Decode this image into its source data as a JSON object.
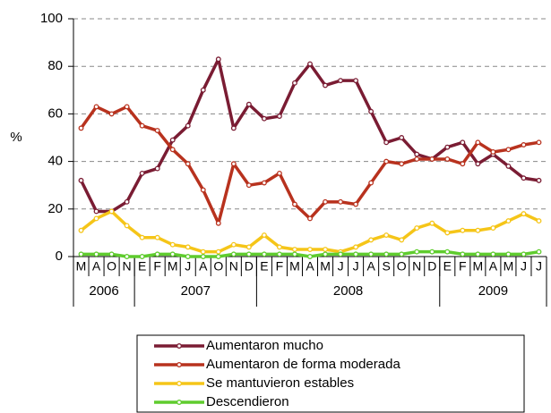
{
  "chart_data": {
    "type": "line",
    "y_label": "%",
    "categories": [
      "M",
      "A",
      "O",
      "N",
      "E",
      "F",
      "M",
      "J",
      "A",
      "O",
      "N",
      "D",
      "E",
      "F",
      "M",
      "A",
      "M",
      "J",
      "J",
      "A",
      "S",
      "O",
      "N",
      "D",
      "E",
      "F",
      "M",
      "A",
      "M",
      "J",
      "J"
    ],
    "years": [
      "2006",
      "2007",
      "2008",
      "2009"
    ],
    "series": [
      {
        "name": "Aumentaron mucho",
        "color": "#7a1c33",
        "values": [
          32,
          19,
          19,
          23,
          35,
          37,
          49,
          55,
          70,
          83,
          54,
          64,
          58,
          59,
          73,
          81,
          72,
          74,
          74,
          61,
          48,
          50,
          43,
          41,
          46,
          48,
          39,
          43,
          38,
          33,
          32
        ]
      },
      {
        "name": "Aumentaron de forma moderada",
        "color": "#b8321e",
        "values": [
          54,
          63,
          60,
          63,
          55,
          53,
          45,
          39,
          28,
          14,
          39,
          30,
          31,
          35,
          22,
          16,
          23,
          23,
          22,
          31,
          40,
          39,
          41,
          41,
          41,
          39,
          48,
          44,
          45,
          47,
          48
        ]
      },
      {
        "name": "Se mantuvieron estables",
        "color": "#f5c518",
        "values": [
          11,
          16,
          19,
          13,
          8,
          8,
          5,
          4,
          2,
          2,
          5,
          4,
          9,
          4,
          3,
          3,
          3,
          2,
          4,
          7,
          9,
          7,
          12,
          14,
          10,
          11,
          11,
          12,
          15,
          18,
          15
        ]
      },
      {
        "name": "Descendieron",
        "color": "#5fcc2e",
        "values": [
          1,
          1,
          1,
          0,
          0,
          1,
          1,
          0,
          0,
          0,
          1,
          1,
          1,
          1,
          1,
          0,
          1,
          1,
          1,
          1,
          1,
          1,
          2,
          2,
          2,
          1,
          1,
          1,
          1,
          1,
          2
        ]
      }
    ],
    "ylim": [
      0,
      100
    ],
    "yticks": [
      0,
      20,
      40,
      60,
      80,
      100
    ],
    "grid": true
  }
}
